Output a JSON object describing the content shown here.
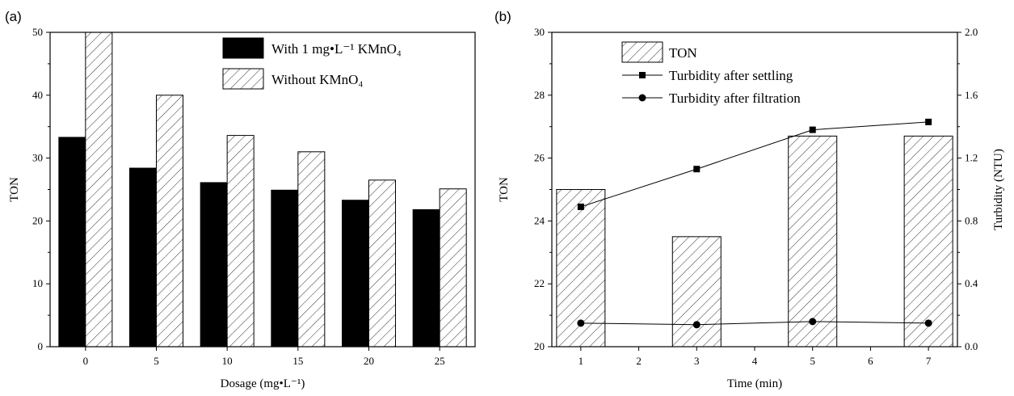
{
  "chart_data": [
    {
      "panel_label": "(a)",
      "type": "bar",
      "xlabel": "Dosage (mg•L⁻¹)",
      "ylabel": "TON",
      "categories": [
        "0",
        "5",
        "10",
        "15",
        "20",
        "25"
      ],
      "ylim": [
        0,
        50
      ],
      "yticks": [
        "0",
        "10",
        "20",
        "30",
        "40",
        "50"
      ],
      "series": [
        {
          "name": "With 1 mg•L⁻¹ KMnO₄",
          "values": [
            33.3,
            28.4,
            26.1,
            24.9,
            23.3,
            21.8
          ],
          "fill": "#000000"
        },
        {
          "name": "Without KMnO₄",
          "values": [
            50.0,
            40.0,
            33.6,
            31.0,
            26.5,
            25.1
          ],
          "fill": "hatch"
        }
      ],
      "legend": "top-right"
    },
    {
      "panel_label": "(b)",
      "type": "bar+line",
      "xlabel": "Time (min)",
      "ylabel": "TON",
      "y2label": "Turbidity (NTU)",
      "xlim": [
        0.5,
        7.5
      ],
      "xticks": [
        "1",
        "2",
        "3",
        "4",
        "5",
        "6",
        "7"
      ],
      "ylim": [
        20,
        30
      ],
      "yticks": [
        "20",
        "22",
        "24",
        "26",
        "28",
        "30"
      ],
      "y2lim": [
        0,
        2.0
      ],
      "y2ticks": [
        "0.0",
        "0.4",
        "0.8",
        "1.2",
        "1.6",
        "2.0"
      ],
      "bars": {
        "name": "TON",
        "x": [
          1,
          3,
          5,
          7
        ],
        "values": [
          25.0,
          23.5,
          26.7,
          26.7
        ]
      },
      "lines": [
        {
          "name": "Turbidity after settling",
          "marker": "square",
          "x": [
            1,
            3,
            5,
            7
          ],
          "values": [
            0.89,
            1.13,
            1.38,
            1.43
          ]
        },
        {
          "name": "Turbidity after filtration",
          "marker": "circle",
          "x": [
            1,
            3,
            5,
            7
          ],
          "values": [
            0.15,
            0.14,
            0.16,
            0.15
          ]
        }
      ],
      "legend": "top-left"
    }
  ]
}
